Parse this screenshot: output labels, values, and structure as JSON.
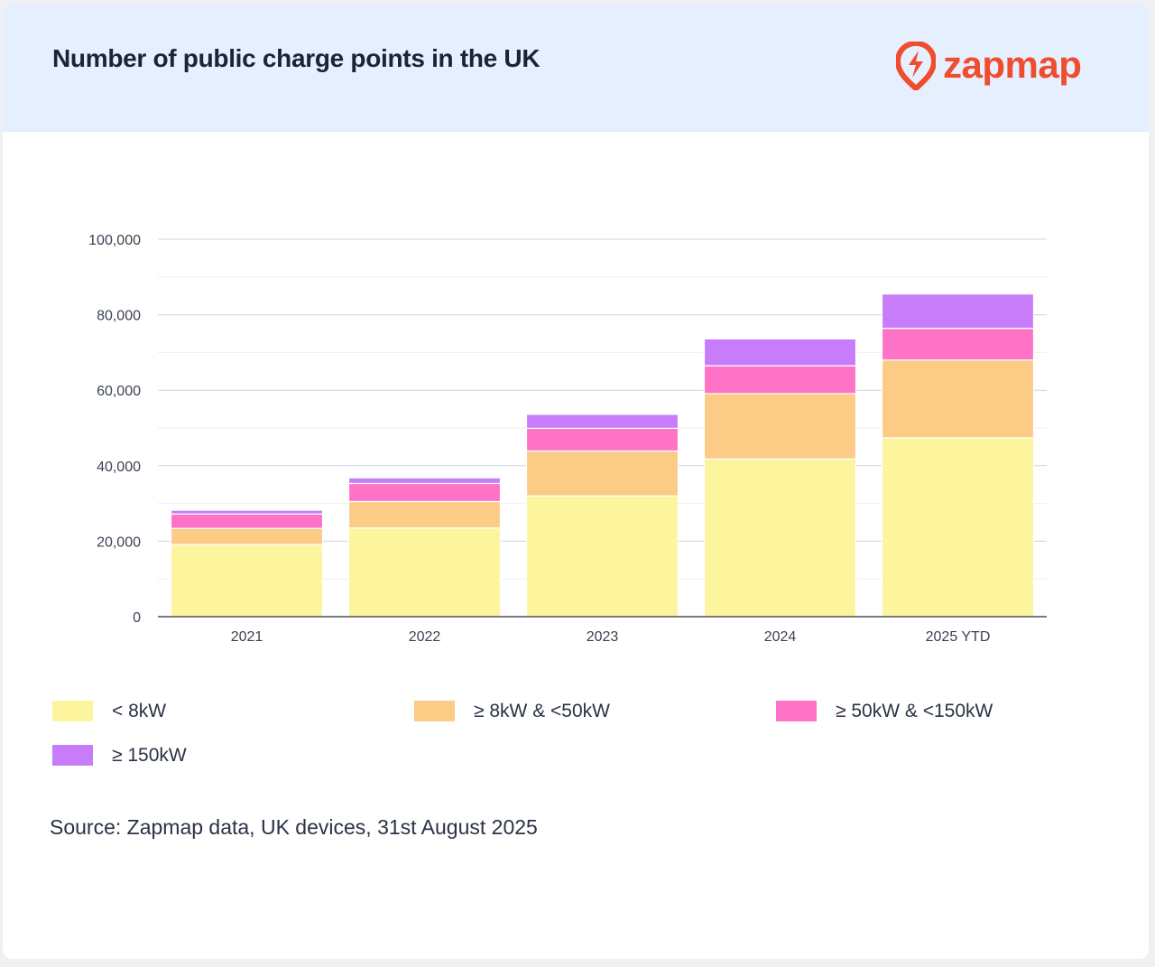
{
  "header": {
    "title": "Number of public charge points in the UK",
    "logo_text": "zapmap"
  },
  "chart_data": {
    "type": "bar",
    "stacked": true,
    "title": "Number of public charge points in the UK",
    "xlabel": "",
    "ylabel": "",
    "ylim": [
      0,
      100000
    ],
    "yticks": [
      0,
      20000,
      40000,
      60000,
      80000,
      100000
    ],
    "ytick_labels": [
      "0",
      "20,000",
      "40,000",
      "60,000",
      "80,000",
      "100,000"
    ],
    "grid": true,
    "legend_position": "bottom",
    "categories": [
      "2021",
      "2022",
      "2023",
      "2024",
      "2025 YTD"
    ],
    "series": [
      {
        "name": "< 8kW",
        "color": "#fdf49e",
        "values": [
          19100,
          23500,
          32000,
          41800,
          47400
        ]
      },
      {
        "name": "≥ 8kW & <50kW",
        "color": "#fccb86",
        "values": [
          4300,
          7000,
          11900,
          17300,
          20600
        ]
      },
      {
        "name": "≥ 50kW & <150kW",
        "color": "#ff73c6",
        "values": [
          3800,
          4800,
          6000,
          7400,
          8400
        ]
      },
      {
        "name": "≥ 150kW",
        "color": "#c77dfa",
        "values": [
          1000,
          1500,
          3700,
          7100,
          9100
        ]
      }
    ]
  },
  "source": "Source: Zapmap data, UK devices, 31st August 2025",
  "brand_color": "#f04c2f"
}
